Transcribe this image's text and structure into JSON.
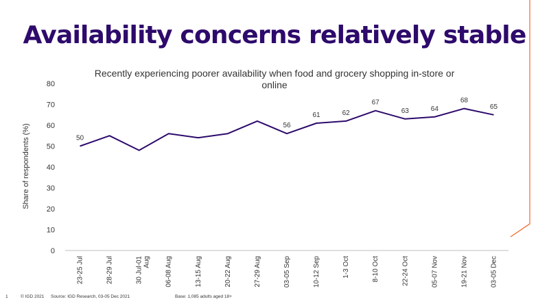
{
  "slide": {
    "title": "Availability concerns relatively stable",
    "footer": {
      "page_number": "1",
      "copyright": "© IGD 2021",
      "source": "Source: IGD Research, 03-05 Dec 2021",
      "base": "Base: 1,085 adults aged 18+"
    }
  },
  "colors": {
    "title": "#2d0a6b",
    "series": "#2d0a6b",
    "accent": "#f26522"
  },
  "chart_data": {
    "type": "line",
    "title_lines": [
      "Recently experiencing poorer availability when food and grocery shopping in-store or",
      "online"
    ],
    "ylabel": "Share of respondents (%)",
    "xlabel": "",
    "ylim": [
      0,
      80
    ],
    "yticks": [
      0,
      10,
      20,
      30,
      40,
      50,
      60,
      70,
      80
    ],
    "grid": false,
    "categories": [
      [
        "23-25 Jul"
      ],
      [
        "28-29 Jul"
      ],
      [
        "30 Jul-01",
        "Aug"
      ],
      [
        "06-08 Aug"
      ],
      [
        "13-15 Aug"
      ],
      [
        "20-22 Aug"
      ],
      [
        "27-29 Aug"
      ],
      [
        "03-05 Sep"
      ],
      [
        "10-12 Sep"
      ],
      [
        "1-3 Oct"
      ],
      [
        "8-10 Oct"
      ],
      [
        "22-24 Oct"
      ],
      [
        "05-07 Nov"
      ],
      [
        "19-21 Nov"
      ],
      [
        "03-05 Dec"
      ]
    ],
    "series": [
      {
        "values": [
          50,
          55,
          48,
          56,
          54,
          56,
          62,
          56,
          61,
          62,
          67,
          63,
          64,
          68,
          65
        ],
        "labels": [
          "50",
          null,
          null,
          null,
          null,
          null,
          null,
          "56",
          "61",
          "62",
          "67",
          "63",
          "64",
          "68",
          "65"
        ]
      }
    ]
  }
}
